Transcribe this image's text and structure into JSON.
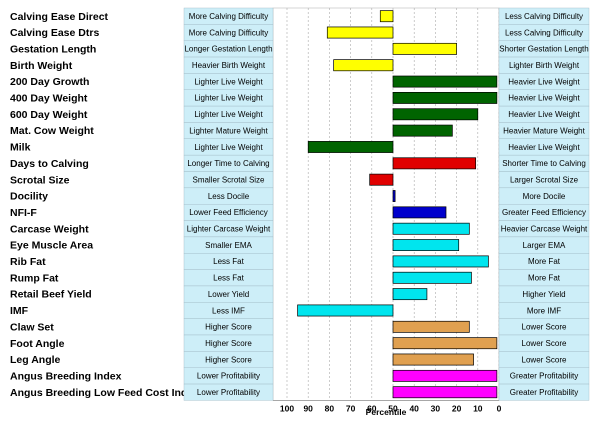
{
  "chart_data": {
    "type": "bar",
    "xlabel": "Percentile",
    "xlim": [
      100,
      0
    ],
    "xticks": [
      "100",
      "90",
      "80",
      "70",
      "60",
      "50",
      "40",
      "30",
      "20",
      "10",
      "0"
    ],
    "gridlines": "dashed-vertical",
    "categories": [
      "Calving Ease Direct",
      "Calving Ease Dtrs",
      "Gestation Length",
      "Birth Weight",
      "200 Day Growth",
      "400 Day Weight",
      "600 Day Weight",
      "Mat. Cow Weight",
      "Milk",
      "Days to Calving",
      "Scrotal Size",
      "Docility",
      "NFI-F",
      "Carcase Weight",
      "Eye Muscle Area",
      "Rib Fat",
      "Rump Fat",
      "Retail Beef Yield",
      "IMF",
      "Claw Set",
      "Foot Angle",
      "Leg Angle",
      "Angus Breeding Index",
      "Angus Breeding Low Feed Cost Index"
    ],
    "values": [
      56,
      81,
      20,
      78,
      1,
      1,
      10,
      22,
      90,
      11,
      61,
      49,
      25,
      14,
      19,
      5,
      13,
      34,
      95,
      14,
      1,
      12,
      1,
      1
    ],
    "bar_colors": [
      "#ffff00",
      "#ffff00",
      "#ffff00",
      "#ffff00",
      "#006400",
      "#006400",
      "#006400",
      "#006400",
      "#006400",
      "#e00000",
      "#e00000",
      "#0000cc",
      "#0000cc",
      "#00e5ee",
      "#00e5ee",
      "#00e5ee",
      "#00e5ee",
      "#00e5ee",
      "#00e5ee",
      "#e0a050",
      "#e0a050",
      "#e0a050",
      "#ff00ff",
      "#ff00ff"
    ],
    "left_descriptions": [
      "More Calving Difficulty",
      "More Calving Difficulty",
      "Longer Gestation Length",
      "Heavier Birth Weight",
      "Lighter Live Weight",
      "Lighter Live Weight",
      "Lighter Live Weight",
      "Lighter Mature Weight",
      "Lighter Live Weight",
      "Longer Time to Calving",
      "Smaller Scrotal Size",
      "Less Docile",
      "Lower Feed Efficiency",
      "Lighter Carcase Weight",
      "Smaller EMA",
      "Less Fat",
      "Less Fat",
      "Lower Yield",
      "Less IMF",
      "Higher Score",
      "Higher Score",
      "Higher Score",
      "Lower Profitability",
      "Lower Profitability"
    ],
    "right_descriptions": [
      "Less Calving Difficulty",
      "Less Calving Difficulty",
      "Shorter Gestation Length",
      "Lighter Birth Weight",
      "Heavier Live Weight",
      "Heavier Live Weight",
      "Heavier Live Weight",
      "Heavier Mature Weight",
      "Heavier Live Weight",
      "Shorter Time to Calving",
      "Larger Scrotal Size",
      "More Docile",
      "Greater Feed Efficiency",
      "Heavier Carcase Weight",
      "Larger EMA",
      "More Fat",
      "More Fat",
      "Higher Yield",
      "More IMF",
      "Lower Score",
      "Lower Score",
      "Lower Score",
      "Greater Profitability",
      "Greater Profitability"
    ],
    "box_color": "#cdeef8",
    "grid": true
  }
}
